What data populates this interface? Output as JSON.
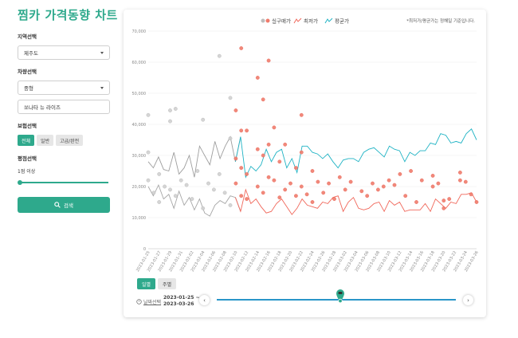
{
  "app": {
    "title": "찜카 가격동향 차트"
  },
  "sidebar": {
    "region_label": "지역선택",
    "region_value": "제주도",
    "vehicle_label": "차량선택",
    "vehicle_value": "중형",
    "model_value": "쏘나타 뉴 라이즈",
    "insurance_label": "보험선택",
    "insurance_options": [
      "전체",
      "일반",
      "고급/완전"
    ],
    "insurance_selected": 0,
    "rating_label": "평점선택",
    "rating_value": "1점 이상",
    "rating_slider_level": 0,
    "search_label": "검색"
  },
  "chart": {
    "legend": [
      "실구매가",
      "최저가",
      "평균가"
    ],
    "note": "*최저가/평균가는 정해일 기준입니다.",
    "y_ticks": [
      "0",
      "10,000",
      "20,000",
      "30,000",
      "40,000",
      "50,000",
      "60,000",
      "70,000"
    ],
    "x_ticks": [
      "2023-01-25",
      "2023-01-27",
      "2023-01-29",
      "2023-01-31",
      "2023-02-02",
      "2023-02-04",
      "2023-02-06",
      "2023-02-08",
      "2023-02-10",
      "2023-02-12",
      "2023-02-14",
      "2023-02-16",
      "2023-02-18",
      "2023-02-20",
      "2023-02-22",
      "2023-02-24",
      "2023-02-26",
      "2023-02-28",
      "2023-03-02",
      "2023-03-04",
      "2023-03-06",
      "2023-03-08",
      "2023-03-10",
      "2023-03-12",
      "2023-03-14",
      "2023-03-16",
      "2023-03-18",
      "2023-03-20",
      "2023-03-22",
      "2023-03-24",
      "2023-03-26"
    ],
    "colors": {
      "actual": "#f07b6c",
      "actual_past": "#bdbdbd",
      "lowest": "#f0675a",
      "average": "#1fb3c4",
      "lowest_past": "#a6a6a6",
      "average_past": "#9e9e9e"
    }
  },
  "chart_data": {
    "type": "line",
    "x_start": "2023-01-25",
    "x_end": "2023-03-26",
    "ylim": [
      0,
      70000
    ],
    "grid": true,
    "legend_position": "top-center",
    "series": [
      {
        "name": "평균가",
        "values": [
          28000,
          26000,
          29500,
          25500,
          25000,
          31000,
          24000,
          26000,
          30000,
          23000,
          33000,
          30000,
          27000,
          34500,
          29000,
          33000,
          36000,
          28000,
          36000,
          23000,
          26500,
          25000,
          27000,
          32000,
          28000,
          31000,
          32000,
          26000,
          29000,
          24500,
          33000,
          33000,
          31000,
          30500,
          29000,
          30500,
          28000,
          26000,
          28500,
          29000,
          29000,
          28000,
          31000,
          32000,
          32500,
          31000,
          29500,
          33000,
          32000,
          31500,
          28000,
          31000,
          30000,
          31500,
          31500,
          34000,
          33500,
          37000,
          36500,
          34000,
          34500,
          34000,
          37000,
          38500,
          35000
        ]
      },
      {
        "name": "최저가",
        "values": [
          20000,
          17000,
          20500,
          16000,
          17500,
          13000,
          18500,
          14000,
          16500,
          12500,
          16000,
          11500,
          10500,
          14000,
          15500,
          14500,
          17000,
          16500,
          12000,
          19000,
          14500,
          16000,
          13500,
          11500,
          12000,
          14500,
          16000,
          13500,
          11000,
          13000,
          16000,
          14000,
          13500,
          13000,
          15000,
          14500,
          16500,
          17000,
          12000,
          15000,
          16500,
          13000,
          12500,
          13000,
          14500,
          15000,
          12000,
          15500,
          14000,
          15000,
          12000,
          12500,
          12500,
          12500,
          14500,
          12000,
          16000,
          14500,
          13000,
          15000,
          14500,
          17500,
          17500,
          18000,
          15000
        ]
      },
      {
        "name": "실구매가",
        "points": [
          [
            "2023-01-25",
            43000
          ],
          [
            "2023-01-25",
            31000
          ],
          [
            "2023-01-25",
            22000
          ],
          [
            "2023-01-26",
            18000
          ],
          [
            "2023-01-27",
            24000
          ],
          [
            "2023-01-27",
            15000
          ],
          [
            "2023-01-28",
            20000
          ],
          [
            "2023-01-29",
            44500
          ],
          [
            "2023-01-29",
            41000
          ],
          [
            "2023-01-29",
            19000
          ],
          [
            "2023-01-30",
            45000
          ],
          [
            "2023-01-30",
            17000
          ],
          [
            "2023-01-31",
            22000
          ],
          [
            "2023-02-01",
            20500
          ],
          [
            "2023-02-02",
            16000
          ],
          [
            "2023-02-03",
            25000
          ],
          [
            "2023-02-04",
            41500
          ],
          [
            "2023-02-04",
            13000
          ],
          [
            "2023-02-05",
            21000
          ],
          [
            "2023-02-06",
            19000
          ],
          [
            "2023-02-07",
            62000
          ],
          [
            "2023-02-07",
            24000
          ],
          [
            "2023-02-08",
            18000
          ],
          [
            "2023-02-09",
            48500
          ],
          [
            "2023-02-09",
            35500
          ],
          [
            "2023-02-09",
            14000
          ],
          [
            "2023-02-10",
            44500
          ],
          [
            "2023-02-10",
            29000
          ],
          [
            "2023-02-10",
            21000
          ],
          [
            "2023-02-11",
            64500
          ],
          [
            "2023-02-11",
            38000
          ],
          [
            "2023-02-11",
            26000
          ],
          [
            "2023-02-11",
            17000
          ],
          [
            "2023-02-12",
            38000
          ],
          [
            "2023-02-12",
            24000
          ],
          [
            "2023-02-12",
            16000
          ],
          [
            "2023-02-14",
            55000
          ],
          [
            "2023-02-14",
            32000
          ],
          [
            "2023-02-14",
            20000
          ],
          [
            "2023-02-15",
            48000
          ],
          [
            "2023-02-15",
            30000
          ],
          [
            "2023-02-15",
            18000
          ],
          [
            "2023-02-16",
            60500
          ],
          [
            "2023-02-16",
            33500
          ],
          [
            "2023-02-16",
            23000
          ],
          [
            "2023-02-17",
            39000
          ],
          [
            "2023-02-17",
            22000
          ],
          [
            "2023-02-18",
            28000
          ],
          [
            "2023-02-18",
            16500
          ],
          [
            "2023-02-19",
            33500
          ],
          [
            "2023-02-19",
            19000
          ],
          [
            "2023-02-20",
            21000
          ],
          [
            "2023-02-21",
            26000
          ],
          [
            "2023-02-21",
            17000
          ],
          [
            "2023-02-22",
            43000
          ],
          [
            "2023-02-22",
            31000
          ],
          [
            "2023-02-22",
            20000
          ],
          [
            "2023-02-23",
            17500
          ],
          [
            "2023-02-24",
            25000
          ],
          [
            "2023-02-24",
            15000
          ],
          [
            "2023-02-25",
            21500
          ],
          [
            "2023-02-26",
            18000
          ],
          [
            "2023-02-27",
            21000
          ],
          [
            "2023-02-28",
            16000
          ],
          [
            "2023-03-01",
            23000
          ],
          [
            "2023-03-02",
            19000
          ],
          [
            "2023-03-03",
            21500
          ],
          [
            "2023-03-05",
            18500
          ],
          [
            "2023-03-06",
            17000
          ],
          [
            "2023-03-07",
            21000
          ],
          [
            "2023-03-08",
            19000
          ],
          [
            "2023-03-09",
            20000
          ],
          [
            "2023-03-10",
            22000
          ],
          [
            "2023-03-11",
            20500
          ],
          [
            "2023-03-12",
            24000
          ],
          [
            "2023-03-13",
            17000
          ],
          [
            "2023-03-14",
            25000
          ],
          [
            "2023-03-15",
            15000
          ],
          [
            "2023-03-16",
            22000
          ],
          [
            "2023-03-18",
            23500
          ],
          [
            "2023-03-18",
            20000
          ],
          [
            "2023-03-19",
            21000
          ],
          [
            "2023-03-20",
            13000
          ],
          [
            "2023-03-20",
            15500
          ],
          [
            "2023-03-21",
            16000
          ],
          [
            "2023-03-23",
            24500
          ],
          [
            "2023-03-23",
            22000
          ],
          [
            "2023-03-24",
            21500
          ],
          [
            "2023-03-25",
            17500
          ],
          [
            "2023-03-26",
            15000
          ]
        ]
      }
    ]
  },
  "controls": {
    "tabs": [
      "일별",
      "주별"
    ],
    "tab_selected": 0,
    "date_label": "날짜선택",
    "date_from": "2023-01-25 ~",
    "date_to": "2023-03-26",
    "prev_label": "‹",
    "next_label": "›",
    "range_position": 0.5
  }
}
